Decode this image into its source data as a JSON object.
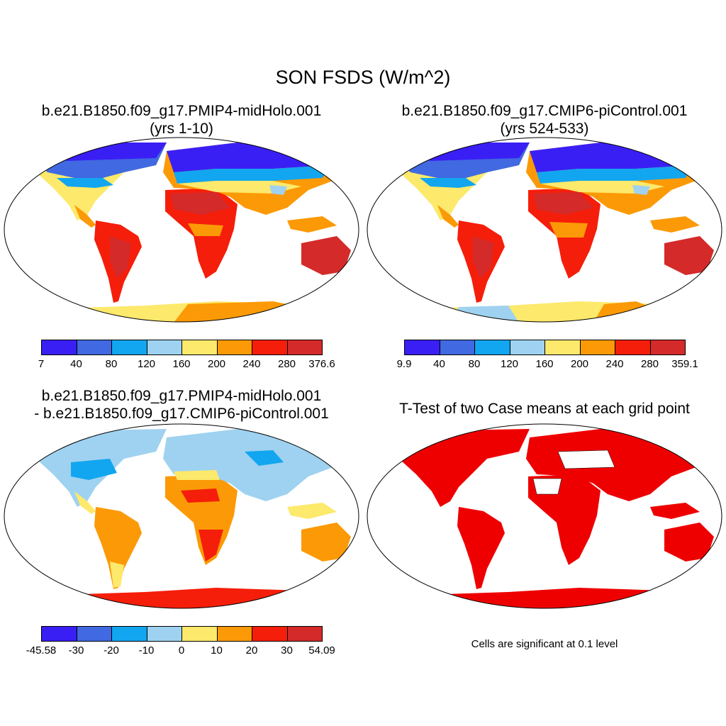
{
  "title": "SON FSDS (W/m^2)",
  "panels": {
    "p1": {
      "title_line1": "b.e21.B1850.f09_g17.PMIP4-midHolo.001",
      "title_line2": "(yrs 1-10)"
    },
    "p2": {
      "title_line1": "b.e21.B1850.f09_g17.CMIP6-piControl.001",
      "title_line2": "(yrs 524-533)"
    },
    "p3": {
      "title_line1": "b.e21.B1850.f09_g17.PMIP4-midHolo.001",
      "title_line2": "- b.e21.B1850.f09_g17.CMIP6-piControl.001"
    },
    "p4": {
      "title": "T-Test of two Case means at each grid point",
      "note": "Cells are significant at 0.1 level"
    }
  },
  "colorbars": {
    "cb1": {
      "labels": [
        "7",
        "40",
        "80",
        "120",
        "160",
        "200",
        "240",
        "280",
        "376.6"
      ]
    },
    "cb2": {
      "labels": [
        "9.9",
        "40",
        "80",
        "120",
        "160",
        "200",
        "240",
        "280",
        "359.1"
      ]
    },
    "cb3": {
      "labels": [
        "-45.58",
        "-30",
        "-20",
        "-10",
        "0",
        "10",
        "20",
        "30",
        "54.09"
      ]
    }
  },
  "palette": [
    "#3a1ff5",
    "#4169e1",
    "#12a6f0",
    "#9fd2f0",
    "#fde96b",
    "#fb9a06",
    "#f51e0a",
    "#d42a2a"
  ],
  "signif_color": "#ee0000"
}
